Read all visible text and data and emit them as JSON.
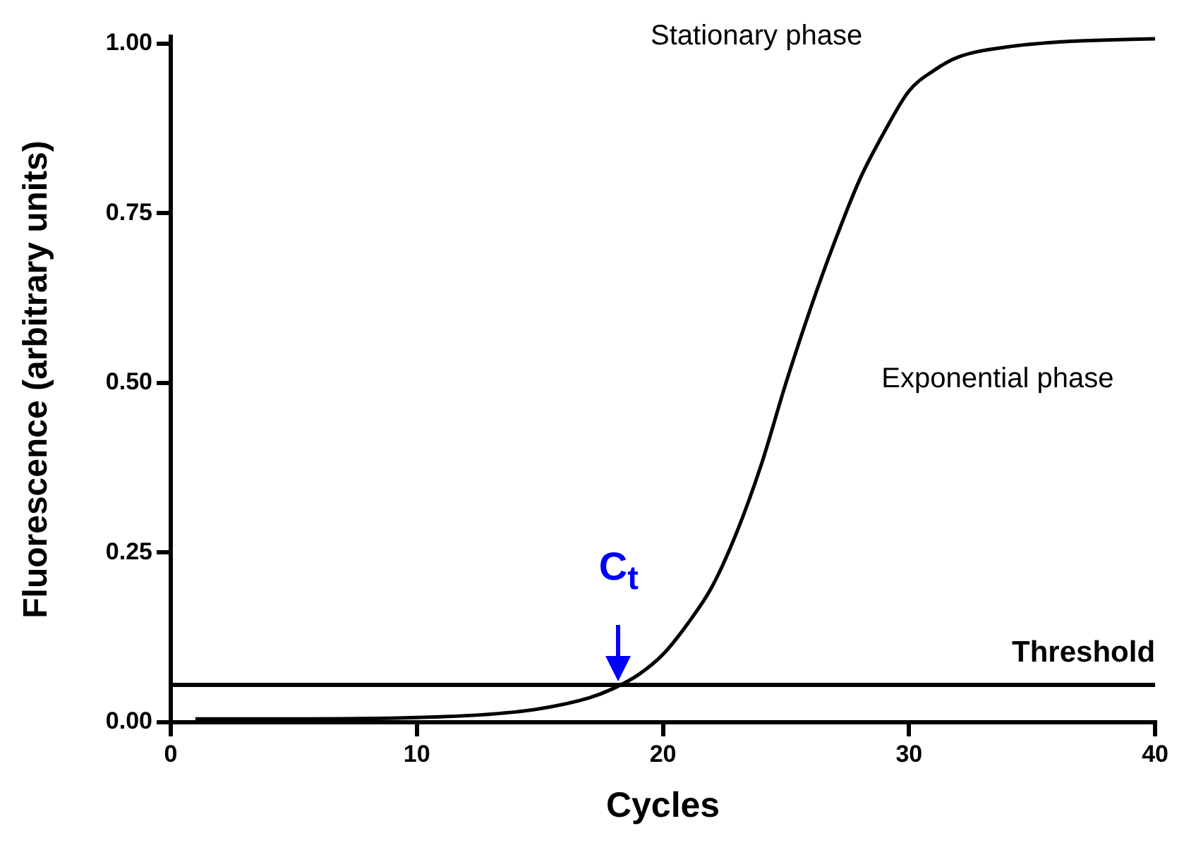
{
  "chart_data": {
    "type": "line",
    "xlabel": "Cycles",
    "ylabel": "Fluorescence (arbitrary units)",
    "xlim": [
      0,
      40
    ],
    "xticks": [
      0,
      10,
      20,
      30,
      40
    ],
    "ylim": [
      0,
      1.01
    ],
    "yticks": [
      {
        "value": 0,
        "label": "0.00"
      },
      {
        "value": 0.25,
        "label": "0.25"
      },
      {
        "value": 0.5,
        "label": "0.50"
      },
      {
        "value": 0.75,
        "label": "0.75"
      },
      {
        "value": 1,
        "label": "1.00"
      }
    ],
    "grid": false,
    "legend": false,
    "marker": "none",
    "line_style": "solid",
    "series": [
      {
        "color": "#000000",
        "x": [
          1,
          5,
          10,
          13,
          15,
          17,
          18,
          19,
          20,
          21,
          22,
          23,
          24,
          25,
          26,
          27,
          28,
          29,
          30,
          31,
          32,
          34,
          36,
          38,
          40
        ],
        "values": [
          0.005,
          0.005,
          0.007,
          0.012,
          0.02,
          0.036,
          0.05,
          0.07,
          0.1,
          0.145,
          0.2,
          0.28,
          0.38,
          0.5,
          0.61,
          0.71,
          0.8,
          0.87,
          0.93,
          0.96,
          0.98,
          0.995,
          1.002,
          1.005,
          1.007
        ]
      }
    ],
    "ref_lines": [
      {
        "axis": "y",
        "value": 0.055,
        "label": "Threshold",
        "color": "#000000",
        "line_style": "solid"
      }
    ],
    "annotations": [
      "Stationary phase",
      "Exponential phase",
      {
        "text": "C$_{t}$",
        "x": 18.2,
        "y": 0.055
      }
    ]
  }
}
